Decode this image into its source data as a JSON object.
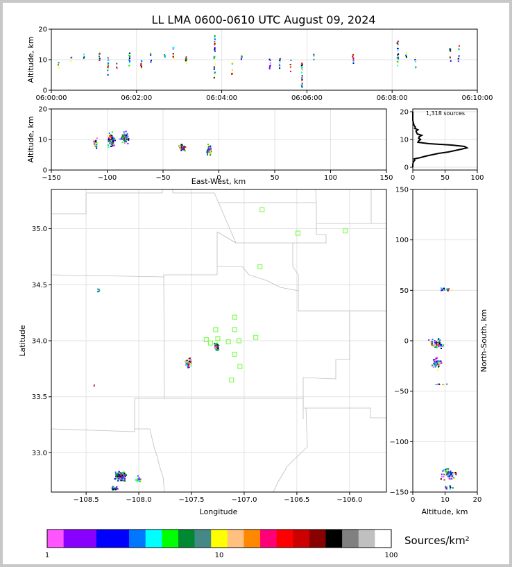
{
  "title": "LL LMA 0600-0610 UTC August 09, 2024",
  "colors": {
    "grid": "#e2e2e2",
    "station": "#66ff33",
    "boundary": "#bdbdbd"
  },
  "colorbar": {
    "label": "Sources/km²",
    "scale": "log",
    "ticks": [
      "1",
      "10",
      "100"
    ],
    "colors": [
      "#ff55ff",
      "#8800ff",
      "#8800ff",
      "#0000ff",
      "#0000ff",
      "#0077ff",
      "#00ffff",
      "#00ff00",
      "#008833",
      "#448888",
      "#ffff00",
      "#ffc080",
      "#ff8800",
      "#ff0077",
      "#ff0000",
      "#cc0000",
      "#880000",
      "#000000",
      "#808080",
      "#c0c0c0",
      "#ffffff"
    ]
  },
  "chart_data": [
    {
      "id": "time-altitude",
      "type": "scatter",
      "xlabel": "",
      "ylabel": "Altitude, km",
      "xlim": [
        0,
        600
      ],
      "ylim": [
        0,
        20
      ],
      "xticks": [
        "06:00:00",
        "06:02:00",
        "06:04:00",
        "06:06:00",
        "06:08:00",
        "06:10:00"
      ],
      "yticks": [
        "0",
        "10",
        "20"
      ],
      "clusters": [
        {
          "t": 10,
          "zmin": 7,
          "zmax": 9,
          "n": 3
        },
        {
          "t": 28,
          "zmin": 9,
          "zmax": 11,
          "n": 4
        },
        {
          "t": 46,
          "zmin": 10,
          "zmax": 12,
          "n": 3
        },
        {
          "t": 68,
          "zmin": 9,
          "zmax": 12.5,
          "n": 8
        },
        {
          "t": 80,
          "zmin": 5,
          "zmax": 11,
          "n": 14
        },
        {
          "t": 92,
          "zmin": 7,
          "zmax": 9,
          "n": 4
        },
        {
          "t": 110,
          "zmin": 8,
          "zmax": 13,
          "n": 12
        },
        {
          "t": 127,
          "zmin": 7,
          "zmax": 10.5,
          "n": 10
        },
        {
          "t": 140,
          "zmin": 8,
          "zmax": 13,
          "n": 6
        },
        {
          "t": 160,
          "zmin": 10,
          "zmax": 12,
          "n": 4
        },
        {
          "t": 172,
          "zmin": 9,
          "zmax": 14,
          "n": 8
        },
        {
          "t": 190,
          "zmin": 8,
          "zmax": 11,
          "n": 6
        },
        {
          "t": 230,
          "zmin": 4,
          "zmax": 18,
          "n": 30
        },
        {
          "t": 255,
          "zmin": 5,
          "zmax": 9,
          "n": 6
        },
        {
          "t": 268,
          "zmin": 10,
          "zmax": 12,
          "n": 4
        },
        {
          "t": 308,
          "zmin": 7,
          "zmax": 11,
          "n": 8
        },
        {
          "t": 322,
          "zmin": 7,
          "zmax": 10.5,
          "n": 8
        },
        {
          "t": 337,
          "zmin": 6,
          "zmax": 11,
          "n": 6
        },
        {
          "t": 353,
          "zmin": 1,
          "zmax": 9,
          "n": 30
        },
        {
          "t": 370,
          "zmin": 10,
          "zmax": 12,
          "n": 3
        },
        {
          "t": 425,
          "zmin": 8,
          "zmax": 12,
          "n": 8
        },
        {
          "t": 488,
          "zmin": 8,
          "zmax": 16,
          "n": 18
        },
        {
          "t": 500,
          "zmin": 10,
          "zmax": 12.5,
          "n": 5
        },
        {
          "t": 513,
          "zmin": 7,
          "zmax": 11,
          "n": 5
        },
        {
          "t": 562,
          "zmin": 9,
          "zmax": 14,
          "n": 10
        },
        {
          "t": 574,
          "zmin": 9,
          "zmax": 15,
          "n": 8
        }
      ]
    },
    {
      "id": "ew-altitude",
      "type": "scatter",
      "xlabel": "East-West, km",
      "ylabel": "Altitude, km",
      "xlim": [
        -150,
        150
      ],
      "ylim": [
        0,
        20
      ],
      "xticks": [
        "−150",
        "−100",
        "−50",
        "0",
        "50",
        "100",
        "150"
      ],
      "yticks": [
        "0",
        "10",
        "20"
      ],
      "clusters": [
        {
          "x": -110,
          "z": 9,
          "dx": 2,
          "dz": 2.5,
          "n": 25
        },
        {
          "x": -96,
          "z": 10,
          "dx": 5,
          "dz": 3,
          "n": 60
        },
        {
          "x": -84,
          "z": 10.5,
          "dx": 5,
          "dz": 2.5,
          "n": 70
        },
        {
          "x": -33,
          "z": 7.5,
          "dx": 4,
          "dz": 1.5,
          "n": 60
        },
        {
          "x": -9,
          "z": 6.5,
          "dx": 3,
          "dz": 2.5,
          "n": 70
        }
      ]
    },
    {
      "id": "altitude-histogram",
      "type": "line",
      "annotation": "1,318 sources",
      "xlim": [
        0,
        100
      ],
      "ylim": [
        -1,
        21
      ],
      "xticks": [
        "0",
        "50",
        "100"
      ],
      "yticks": [
        "0",
        "10",
        "20"
      ],
      "altitude": [
        0,
        1,
        2,
        2.5,
        3,
        3.5,
        4,
        4.5,
        5,
        5.5,
        6,
        6.5,
        7,
        7.5,
        8,
        8.5,
        9,
        9.5,
        10,
        10.5,
        11,
        11.5,
        12,
        12.5,
        13,
        13.5,
        14,
        14.5,
        15,
        16,
        17,
        18,
        20
      ],
      "sources": [
        0,
        0,
        1,
        3,
        2,
        12,
        20,
        30,
        40,
        55,
        65,
        75,
        84,
        80,
        60,
        25,
        8,
        9,
        12,
        9,
        10,
        14,
        7,
        6,
        5,
        8,
        3,
        4,
        2,
        1,
        0,
        0,
        0
      ]
    },
    {
      "id": "plan-view",
      "type": "scatter",
      "xlabel": "Longitude",
      "ylabel": "Latitude",
      "xlim": [
        -108.83,
        -105.65
      ],
      "ylim": [
        32.65,
        35.35
      ],
      "xticks": [
        "−108.5",
        "−108.0",
        "−107.5",
        "−107.0",
        "−106.5",
        "−106.0"
      ],
      "xtick_values": [
        -108.5,
        -108.0,
        -107.5,
        -107.0,
        -106.5,
        -106.0
      ],
      "yticks": [
        "33.0",
        "33.5",
        "34.0",
        "34.5",
        "35.0"
      ],
      "ytick_values": [
        33.0,
        33.5,
        34.0,
        34.5,
        35.0
      ],
      "stations": [
        {
          "lon": -106.83,
          "lat": 35.17
        },
        {
          "lon": -106.49,
          "lat": 34.96
        },
        {
          "lon": -106.04,
          "lat": 34.98
        },
        {
          "lon": -106.85,
          "lat": 34.66
        },
        {
          "lon": -107.09,
          "lat": 34.21
        },
        {
          "lon": -107.27,
          "lat": 34.1
        },
        {
          "lon": -107.09,
          "lat": 34.1
        },
        {
          "lon": -107.36,
          "lat": 34.01
        },
        {
          "lon": -107.32,
          "lat": 33.98
        },
        {
          "lon": -107.25,
          "lat": 34.02
        },
        {
          "lon": -107.15,
          "lat": 33.99
        },
        {
          "lon": -107.05,
          "lat": 34.0
        },
        {
          "lon": -106.89,
          "lat": 34.03
        },
        {
          "lon": -107.09,
          "lat": 33.88
        },
        {
          "lon": -107.04,
          "lat": 33.77
        },
        {
          "lon": -107.12,
          "lat": 33.65
        }
      ],
      "clusters": [
        {
          "lon": -108.18,
          "lat": 32.79,
          "dlon": 0.08,
          "dlat": 0.06,
          "n": 110
        },
        {
          "lon": -108.23,
          "lat": 32.68,
          "dlon": 0.04,
          "dlat": 0.03,
          "n": 25
        },
        {
          "lon": -108.0,
          "lat": 32.76,
          "dlon": 0.05,
          "dlat": 0.04,
          "n": 15
        },
        {
          "lon": -108.38,
          "lat": 34.45,
          "dlon": 0.02,
          "dlat": 0.02,
          "n": 10
        },
        {
          "lon": -108.42,
          "lat": 33.6,
          "dlon": 0.01,
          "dlat": 0.01,
          "n": 3
        },
        {
          "lon": -107.53,
          "lat": 33.8,
          "dlon": 0.04,
          "dlat": 0.05,
          "n": 50
        },
        {
          "lon": -107.26,
          "lat": 33.95,
          "dlon": 0.03,
          "dlat": 0.04,
          "n": 60
        }
      ]
    },
    {
      "id": "altitude-northsouth",
      "type": "scatter",
      "xlabel": "Altitude, km",
      "ylabel": "North-South, km",
      "xlim": [
        0,
        20
      ],
      "ylim": [
        -150,
        150
      ],
      "xticks": [
        "0",
        "10",
        "20"
      ],
      "yticks": [
        "−150",
        "−100",
        "−50",
        "0",
        "50",
        "100",
        "150"
      ],
      "clusters": [
        {
          "z": 10,
          "y": 51,
          "dz": 4,
          "dy": 2,
          "n": 20
        },
        {
          "z": 7.5,
          "y": -3,
          "dz": 3,
          "dy": 6,
          "n": 60
        },
        {
          "z": 7.5,
          "y": -22,
          "dz": 2,
          "dy": 8,
          "n": 50
        },
        {
          "z": 9,
          "y": -43,
          "dz": 3,
          "dy": 1,
          "n": 8
        },
        {
          "z": 11,
          "y": -132,
          "dz": 3,
          "dy": 8,
          "n": 70
        },
        {
          "z": 11,
          "y": -146,
          "dz": 2,
          "dy": 3,
          "n": 15
        }
      ]
    }
  ]
}
